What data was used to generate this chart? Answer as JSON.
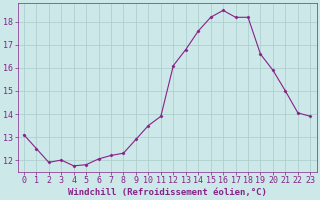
{
  "x": [
    0,
    1,
    2,
    3,
    4,
    5,
    6,
    7,
    8,
    9,
    10,
    11,
    12,
    13,
    14,
    15,
    16,
    17,
    18,
    19,
    20,
    21,
    22,
    23
  ],
  "y": [
    13.1,
    12.5,
    11.9,
    12.0,
    11.75,
    11.8,
    12.05,
    12.2,
    12.3,
    12.9,
    13.5,
    13.9,
    16.1,
    16.8,
    17.6,
    18.2,
    18.5,
    18.2,
    18.2,
    16.6,
    15.9,
    15.0,
    14.05,
    13.9
  ],
  "line_color": "#882288",
  "marker": "D",
  "marker_size": 1.5,
  "bg_color": "#cce8e8",
  "grid_color": "#aacccc",
  "xlabel": "Windchill (Refroidissement éolien,°C)",
  "ylabel_ticks": [
    12,
    13,
    14,
    15,
    16,
    17,
    18
  ],
  "xlim": [
    -0.5,
    23.5
  ],
  "ylim": [
    11.5,
    18.8
  ],
  "xlabel_fontsize": 6.5,
  "tick_fontsize": 6,
  "label_color": "#882288",
  "title": ""
}
